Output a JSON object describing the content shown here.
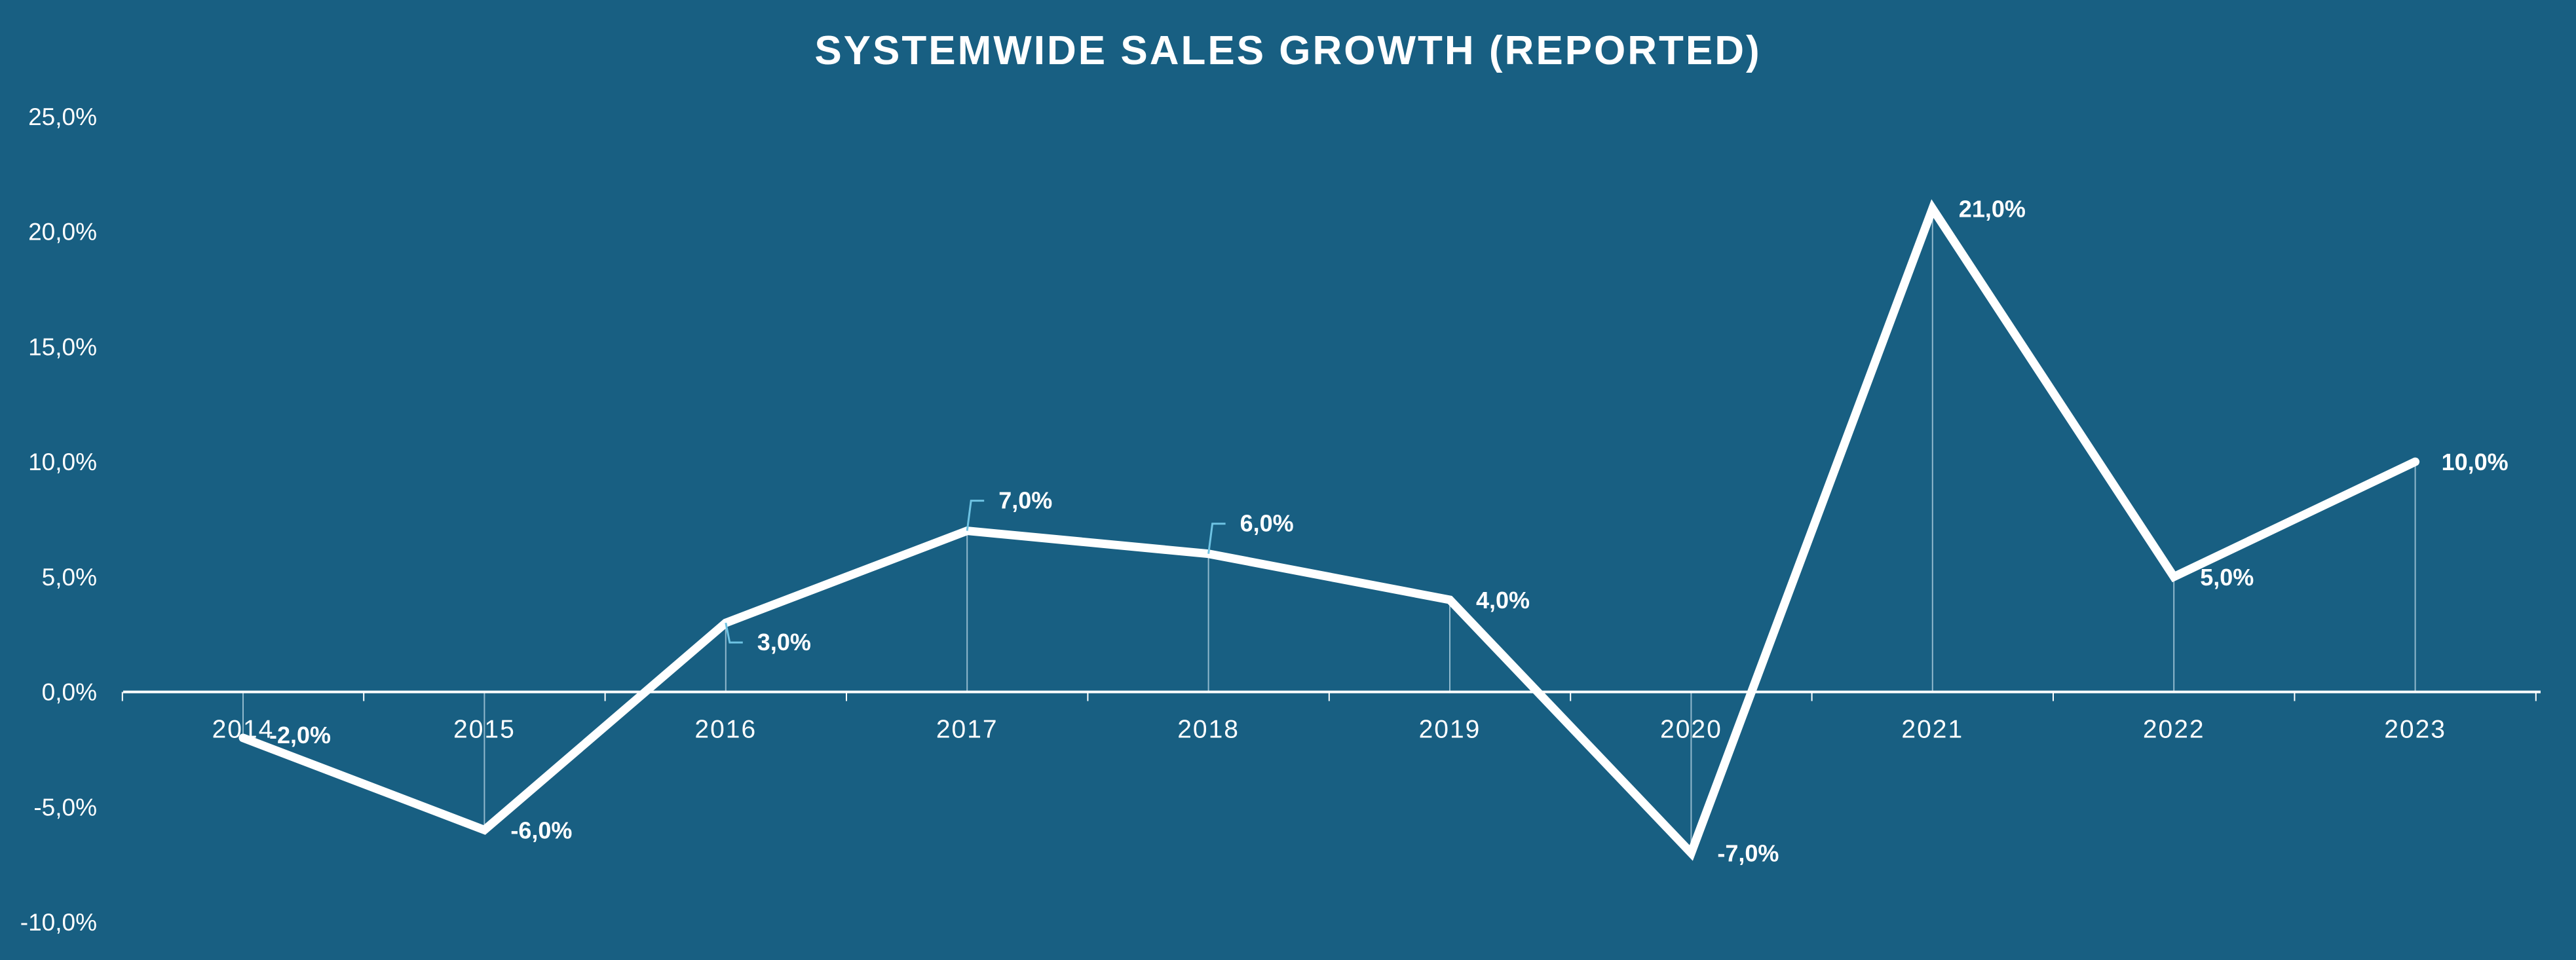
{
  "colors": {
    "background": "#185f82",
    "line": "#ffffff",
    "text": "#ffffff",
    "leader": "#6ec3e3"
  },
  "chart_data": {
    "type": "line",
    "title": "SYSTEMWIDE SALES GROWTH (REPORTED)",
    "xlabel": "",
    "ylabel": "",
    "categories": [
      "2014",
      "2015",
      "2016",
      "2017",
      "2018",
      "2019",
      "2020",
      "2021",
      "2022",
      "2023"
    ],
    "series": [
      {
        "values": [
          -2.0,
          -6.0,
          3.0,
          7.0,
          6.0,
          4.0,
          -7.0,
          21.0,
          5.0,
          10.0
        ],
        "data_labels": [
          "-2,0%",
          "-6,0%",
          "3,0%",
          "7,0%",
          "6,0%",
          "4,0%",
          "-7,0%",
          "21,0%",
          "5,0%",
          "10,0%"
        ]
      }
    ],
    "ylim": [
      -10,
      25
    ],
    "yticks": [
      25,
      20,
      15,
      10,
      5,
      0,
      -5,
      -10
    ],
    "ytick_labels": [
      "25,0%",
      "20,0%",
      "15,0%",
      "10,0%",
      "5,0%",
      "0,0%",
      "-5,0%",
      "-10,0%"
    ],
    "grid": false,
    "legend": "none",
    "drop_lines": true
  }
}
